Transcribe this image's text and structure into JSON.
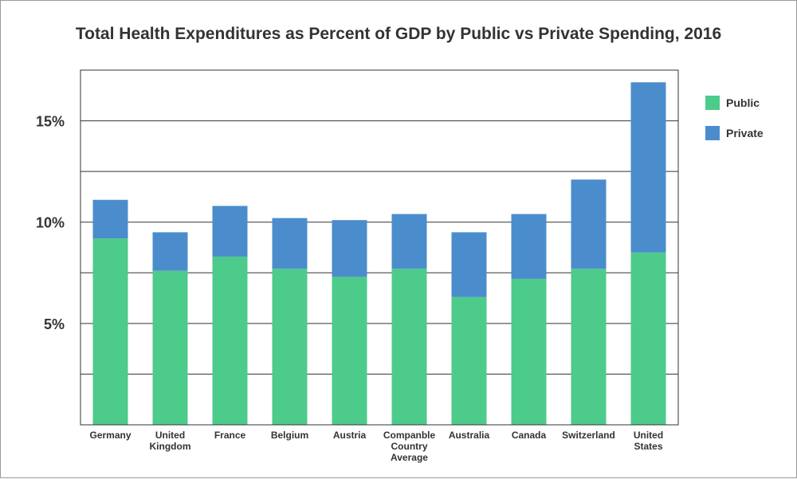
{
  "chart_data": {
    "type": "bar",
    "stacked": true,
    "title": "Total Health Expenditures as Percent of GDP by Public vs Private Spending, 2016",
    "xlabel": "",
    "ylabel": "",
    "ylim": [
      0,
      17.5
    ],
    "yticks": [
      5,
      10,
      15
    ],
    "ytick_labels": [
      "5%",
      "10%",
      "15%"
    ],
    "grid": true,
    "legend_position": "right",
    "categories": [
      [
        "Germany"
      ],
      [
        "United",
        "Kingdom"
      ],
      [
        "France"
      ],
      [
        "Belgium"
      ],
      [
        "Austria"
      ],
      [
        "Companble",
        "Country",
        "Average"
      ],
      [
        "Australia"
      ],
      [
        "Canada"
      ],
      [
        "Switzerland"
      ],
      [
        "United",
        "States"
      ]
    ],
    "series": [
      {
        "name": "Public",
        "color": "#4dcb8a",
        "values": [
          9.2,
          7.6,
          8.3,
          7.7,
          7.3,
          7.7,
          6.3,
          7.2,
          7.7,
          8.5
        ]
      },
      {
        "name": "Private",
        "color": "#4b8dcc",
        "values": [
          1.9,
          1.9,
          2.5,
          2.5,
          2.8,
          2.7,
          3.2,
          3.2,
          4.4,
          8.4
        ]
      }
    ]
  }
}
